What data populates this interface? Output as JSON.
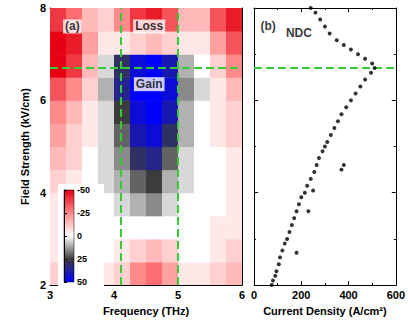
{
  "chart_data": [
    {
      "type": "heatmap",
      "xlabel": "Frequency (THz)",
      "ylabel": "Field Strength (kV/cm)",
      "xlim": [
        3,
        6
      ],
      "xticks": [
        3,
        4,
        5,
        6
      ],
      "ylim": [
        2,
        8
      ],
      "yticks": [
        2,
        4,
        6,
        8
      ],
      "heatmap": {
        "x": [
          3.125,
          3.375,
          3.625,
          3.875,
          4.125,
          4.375,
          4.625,
          4.875,
          5.125,
          5.375,
          5.625,
          5.875
        ],
        "y": [
          2.25,
          2.75,
          3.25,
          3.75,
          4.25,
          4.75,
          5.25,
          5.75,
          6.25,
          6.75,
          7.25,
          7.75
        ],
        "values": [
          [
            -10,
            -10,
            -5,
            -5,
            -10,
            -25,
            -30,
            -20,
            -5,
            -5,
            -10,
            -15
          ],
          [
            -5,
            -5,
            0,
            0,
            -5,
            -10,
            -15,
            -10,
            0,
            0,
            -5,
            -10
          ],
          [
            -5,
            0,
            0,
            0,
            0,
            0,
            0,
            0,
            0,
            0,
            -5,
            -5
          ],
          [
            -5,
            0,
            0,
            0,
            5,
            10,
            15,
            5,
            0,
            0,
            0,
            -5
          ],
          [
            -10,
            -5,
            0,
            5,
            10,
            20,
            25,
            10,
            5,
            0,
            0,
            -5
          ],
          [
            -15,
            -10,
            0,
            5,
            15,
            30,
            35,
            20,
            5,
            0,
            0,
            -5
          ],
          [
            -20,
            -10,
            -5,
            5,
            20,
            40,
            45,
            30,
            10,
            0,
            -5,
            -10
          ],
          [
            -25,
            -15,
            -5,
            5,
            25,
            45,
            50,
            40,
            10,
            0,
            -5,
            -10
          ],
          [
            -35,
            -25,
            -10,
            10,
            35,
            50,
            50,
            45,
            15,
            5,
            -5,
            -15
          ],
          [
            -50,
            -40,
            -15,
            5,
            30,
            45,
            50,
            40,
            10,
            0,
            -10,
            -25
          ],
          [
            -50,
            -45,
            -20,
            -5,
            -5,
            -10,
            -15,
            -10,
            -5,
            -5,
            -20,
            -35
          ],
          [
            -40,
            -30,
            -15,
            -10,
            -25,
            -40,
            -45,
            -35,
            -15,
            -15,
            -35,
            -45
          ]
        ],
        "colorbar": {
          "range": [
            -50,
            50
          ],
          "ticks": [
            -50,
            -25,
            0,
            25,
            50
          ]
        }
      },
      "vlines": [
        4.1,
        5.0
      ],
      "hlines": [
        6.7
      ],
      "annotations": [
        {
          "text": "(a)",
          "x": 3.35,
          "y": 7.6
        },
        {
          "text": "Loss",
          "x": 4.55,
          "y": 7.6
        },
        {
          "text": "Gain",
          "x": 4.55,
          "y": 6.35
        }
      ]
    },
    {
      "type": "scatter",
      "xlabel": "Current Density (A/cm²)",
      "xlim": [
        0,
        600
      ],
      "xticks": [
        0,
        200,
        400,
        600
      ],
      "ylim": [
        2,
        8
      ],
      "yticks": [
        2,
        4,
        6,
        8
      ],
      "tick_labels": "x",
      "marker": "circle",
      "color": "#000000",
      "x": [
        75,
        80,
        90,
        95,
        105,
        110,
        120,
        130,
        140,
        150,
        160,
        170,
        180,
        190,
        200,
        215,
        225,
        240,
        255,
        265,
        275,
        290,
        300,
        310,
        325,
        340,
        355,
        370,
        390,
        410,
        430,
        450,
        470,
        495,
        510,
        500,
        470,
        440,
        410,
        380,
        350,
        320,
        300,
        280,
        260,
        240,
        180,
        230,
        370,
        380,
        250
      ],
      "y": [
        2.0,
        2.1,
        2.2,
        2.3,
        2.45,
        2.6,
        2.75,
        2.9,
        3.0,
        3.15,
        3.3,
        3.45,
        3.6,
        3.75,
        3.9,
        4.0,
        4.15,
        4.3,
        4.45,
        4.6,
        4.75,
        4.9,
        5.0,
        5.1,
        5.25,
        5.4,
        5.55,
        5.7,
        5.85,
        6.0,
        6.15,
        6.3,
        6.45,
        6.6,
        6.7,
        6.8,
        6.9,
        7.0,
        7.1,
        7.2,
        7.3,
        7.45,
        7.6,
        7.75,
        7.9,
        8.0,
        2.7,
        3.6,
        4.5,
        4.6,
        4.05
      ],
      "hlines": [
        6.7
      ],
      "annotations": [
        {
          "text": "(b)",
          "x": 60,
          "y": 7.6
        },
        {
          "text": "NDC",
          "x": 190,
          "y": 7.45
        }
      ]
    }
  ]
}
